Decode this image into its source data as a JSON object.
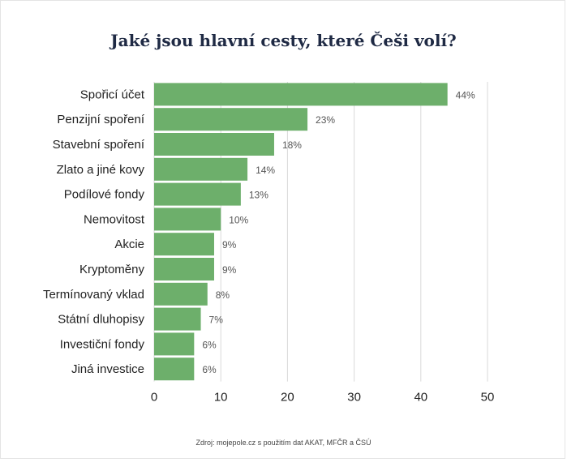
{
  "chart_data": {
    "type": "bar",
    "orientation": "horizontal",
    "title": "Jaké jsou hlavní cesty, které Češi volí?",
    "categories": [
      "Spořicí účet",
      "Penzijní spoření",
      "Stavební spoření",
      "Zlato a jiné kovy",
      "Podílové fondy",
      "Nemovitost",
      "Akcie",
      "Kryptoměny",
      "Termínovaný vklad",
      "Státní dluhopisy",
      "Investiční fondy",
      "Jiná investice"
    ],
    "values": [
      44,
      23,
      18,
      14,
      13,
      10,
      9,
      9,
      8,
      7,
      6,
      6
    ],
    "value_labels": [
      "44%",
      "23%",
      "18%",
      "14%",
      "13%",
      "10%",
      "9%",
      "9%",
      "8%",
      "7%",
      "6%",
      "6%"
    ],
    "xlim": [
      0,
      50
    ],
    "xticks": [
      0,
      10,
      20,
      30,
      40,
      50
    ],
    "grid": true,
    "bar_color": "#6daf6b",
    "grid_color": "#d9d9d9"
  },
  "source": "Zdroj: mojepole.cz s použitím dat AKAT, MFČR a ČSÚ"
}
